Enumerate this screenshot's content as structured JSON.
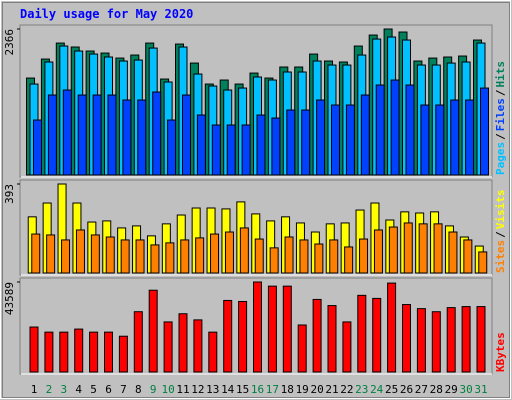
{
  "chart_data": [
    {
      "type": "bar",
      "title": "Daily usage for May 2020",
      "legend_separator": "/",
      "ylim": [
        0,
        2366
      ],
      "yticks": [
        2366
      ],
      "series": [
        {
          "name": "Pages",
          "color": "#00c0ff",
          "values": [
            1474,
            1831,
            2090,
            2009,
            1960,
            1912,
            1847,
            1863,
            2057,
            1507,
            2074,
            1636,
            1442,
            1377,
            1409,
            1588,
            1539,
            1669,
            1669,
            1847,
            1782,
            1782,
            1944,
            2203,
            2236,
            2187,
            1782,
            1782,
            1814,
            1831,
            2138
          ]
        },
        {
          "name": "Files",
          "color": "#0040ff",
          "values": [
            891,
            1296,
            1377,
            1296,
            1296,
            1296,
            1215,
            1215,
            1345,
            891,
            1296,
            972,
            810,
            810,
            810,
            972,
            923,
            1053,
            1053,
            1215,
            1134,
            1134,
            1296,
            1458,
            1539,
            1458,
            1134,
            1134,
            1215,
            1215,
            1409
          ]
        },
        {
          "name": "Hits",
          "color": "#00805c",
          "values": [
            1571,
            1879,
            2138,
            2074,
            2009,
            1976,
            1895,
            1944,
            2138,
            1555,
            2122,
            1814,
            1474,
            1539,
            1474,
            1652,
            1571,
            1750,
            1750,
            1960,
            1847,
            1831,
            2090,
            2268,
            2366,
            2317,
            1847,
            1895,
            1912,
            1928,
            2187
          ]
        }
      ]
    },
    {
      "type": "bar",
      "legend_separator": "/",
      "ylim": [
        0,
        393
      ],
      "yticks": [
        393
      ],
      "series": [
        {
          "name": "Sites",
          "color": "#ff8000",
          "values": [
            172,
            168,
            146,
            190,
            168,
            159,
            146,
            146,
            124,
            133,
            146,
            155,
            172,
            181,
            199,
            150,
            111,
            159,
            146,
            128,
            146,
            115,
            150,
            190,
            203,
            221,
            217,
            217,
            181,
            146,
            93
          ]
        },
        {
          "name": "Visits",
          "color": "#ffff00",
          "values": [
            248,
            309,
            393,
            309,
            225,
            230,
            199,
            208,
            164,
            217,
            256,
            287,
            287,
            283,
            314,
            261,
            230,
            248,
            221,
            181,
            217,
            221,
            278,
            309,
            234,
            270,
            265,
            270,
            208,
            159,
            119
          ]
        }
      ]
    },
    {
      "type": "bar",
      "ylim": [
        0,
        43589
      ],
      "yticks": [
        43589
      ],
      "categories": [
        "1",
        "2",
        "3",
        "4",
        "5",
        "6",
        "7",
        "8",
        "9",
        "10",
        "11",
        "12",
        "13",
        "14",
        "15",
        "16",
        "17",
        "18",
        "19",
        "20",
        "21",
        "22",
        "23",
        "24",
        "25",
        "26",
        "27",
        "28",
        "29",
        "30",
        "31"
      ],
      "category_colors": [
        "#000000",
        "#008040",
        "#008040",
        "#000000",
        "#000000",
        "#000000",
        "#000000",
        "#000000",
        "#008040",
        "#008040",
        "#000000",
        "#000000",
        "#000000",
        "#000000",
        "#000000",
        "#008040",
        "#008040",
        "#000000",
        "#000000",
        "#000000",
        "#000000",
        "#000000",
        "#008040",
        "#008040",
        "#000000",
        "#000000",
        "#000000",
        "#000000",
        "#000000",
        "#008040",
        "#008040"
      ],
      "series": [
        {
          "name": "KBytes",
          "color": "#ff0000",
          "values": [
            21780,
            19305,
            19305,
            20790,
            19305,
            19305,
            17325,
            29205,
            39600,
            24255,
            28215,
            25245,
            19305,
            34650,
            34155,
            43589,
            41580,
            41580,
            22770,
            35145,
            32175,
            24255,
            37125,
            35640,
            43065,
            32670,
            30690,
            29205,
            31185,
            31680,
            31680
          ]
        }
      ]
    }
  ]
}
